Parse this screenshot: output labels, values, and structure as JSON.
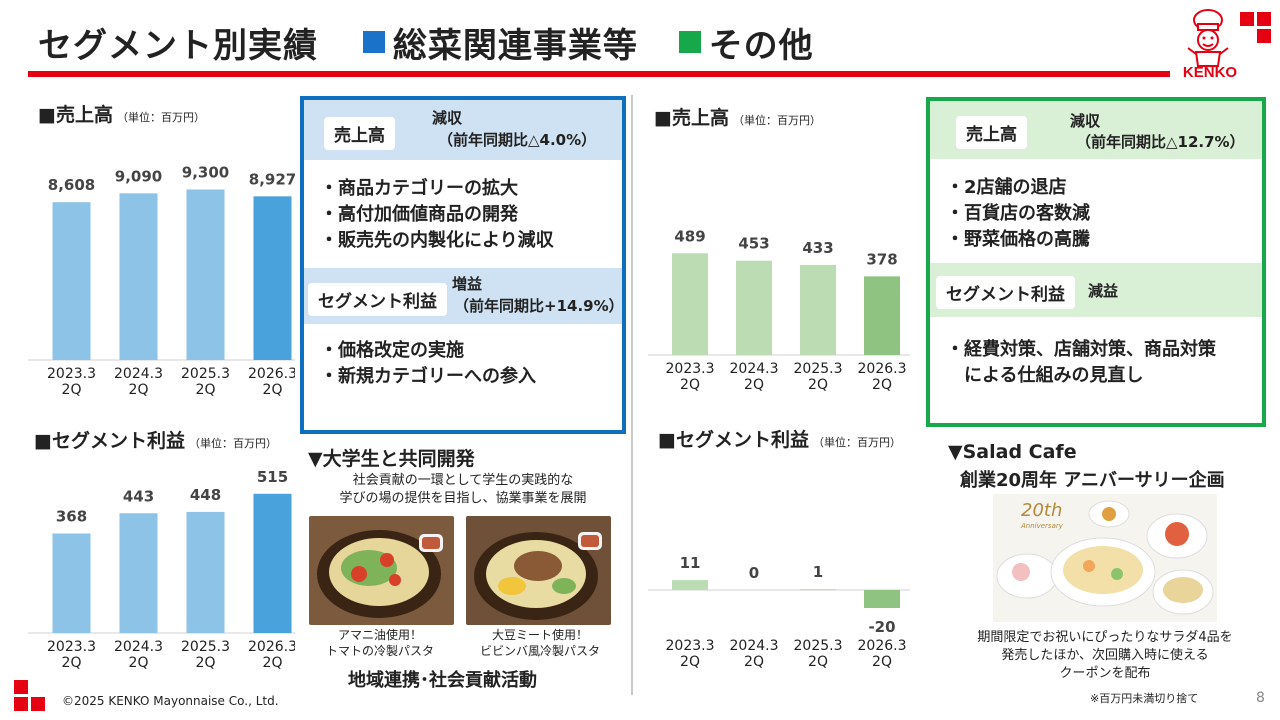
{
  "header": {
    "title": "セグメント別実績",
    "seg1": "総菜関連事業等",
    "seg2": "その他",
    "seg1_color": "#1a73c8",
    "seg2_color": "#16a84a",
    "brand": "KENKO"
  },
  "left": {
    "sales_label": "■売上高",
    "sales_unit": "（単位：百万円）",
    "profit_label": "■セグメント利益",
    "profit_unit": "（単位：百万円）",
    "box": {
      "sales_pill": "売上高",
      "sales_result": "減収",
      "sales_detail": "（前年同期比△4.0%）",
      "sales_bullets": [
        "・商品カテゴリーの拡大",
        "・高付加価値商品の開発",
        "・販売先の内製化により減収"
      ],
      "profit_pill": "セグメント利益",
      "profit_result": "増益",
      "profit_detail": "（前年同期比+14.9%）",
      "profit_bullets": [
        "・価格改定の実施",
        "・新規カテゴリーへの参入"
      ]
    },
    "collab": {
      "heading": "▼大学生と共同開発",
      "desc1": "社会貢献の一環として学生の実践的な",
      "desc2": "学びの場の提供を目指し、協業事業を展開",
      "cap1a": "アマニ油使用！",
      "cap1b": "トマトの冷製パスタ",
      "cap2a": "大豆ミート使用！",
      "cap2b": "ビビンバ風冷製パスタ",
      "footer": "地域連携･社会貢献活動"
    }
  },
  "right": {
    "sales_label": "■売上高",
    "sales_unit": "（単位：百万円）",
    "profit_label": "■セグメント利益",
    "profit_unit": "（単位：百万円）",
    "box": {
      "sales_pill": "売上高",
      "sales_result": "減収",
      "sales_detail": "（前年同期比△12.7%）",
      "sales_bullets": [
        "・2店舗の退店",
        "・百貨店の客数減",
        "・野菜価格の高騰"
      ],
      "profit_pill": "セグメント利益",
      "profit_result": "減益",
      "profit_bullets": [
        "・経費対策、店舗対策、商品対策",
        "　による仕組みの見直し"
      ]
    },
    "cafe": {
      "heading1": "▼Salad Cafe",
      "heading2": "創業20周年 アニバーサリー企画",
      "anniv": "20th",
      "anniv_sub": "Anniversary",
      "desc1": "期間限定でお祝いにぴったりなサラダ4品を",
      "desc2": "発売したほか、次回購入時に使える",
      "desc3": "クーポンを配布"
    }
  },
  "chart_data": [
    {
      "id": "seg1-sales",
      "type": "bar",
      "categories": [
        "2023.3 2Q",
        "2024.3 2Q",
        "2025.3 2Q",
        "2026.3 2Q"
      ],
      "values": [
        8608,
        9090,
        9300,
        8927
      ],
      "labels": [
        "8,608",
        "9,090",
        "9,300",
        "8,927"
      ],
      "colors": [
        "#8dc3e6",
        "#8dc3e6",
        "#8dc3e6",
        "#4aa2dc"
      ],
      "ylim": [
        0,
        12000
      ]
    },
    {
      "id": "seg1-profit",
      "type": "bar",
      "categories": [
        "2023.3 2Q",
        "2024.3 2Q",
        "2025.3 2Q",
        "2026.3 2Q"
      ],
      "values": [
        368,
        443,
        448,
        515
      ],
      "labels": [
        "368",
        "443",
        "448",
        "515"
      ],
      "colors": [
        "#8dc3e6",
        "#8dc3e6",
        "#8dc3e6",
        "#4aa2dc"
      ],
      "ylim": [
        0,
        640
      ]
    },
    {
      "id": "seg2-sales",
      "type": "bar",
      "categories": [
        "2023.3 2Q",
        "2024.3 2Q",
        "2025.3 2Q",
        "2026.3 2Q"
      ],
      "values": [
        489,
        453,
        433,
        378
      ],
      "labels": [
        "489",
        "453",
        "433",
        "378"
      ],
      "colors": [
        "#bcdcb4",
        "#bcdcb4",
        "#bcdcb4",
        "#8ec381"
      ],
      "ylim": [
        0,
        620
      ]
    },
    {
      "id": "seg2-profit",
      "type": "bar",
      "categories": [
        "2023.3 2Q",
        "2024.3 2Q",
        "2025.3 2Q",
        "2026.3 2Q"
      ],
      "values": [
        11,
        0,
        1,
        -20
      ],
      "labels": [
        "11",
        "0",
        "1",
        "-20"
      ],
      "colors": [
        "#bcdcb4",
        "#bcdcb4",
        "#bcdcb4",
        "#8ec381"
      ],
      "ylim": [
        -60,
        60
      ]
    }
  ],
  "footer": {
    "copyright": "©2025 KENKO Mayonnaise Co., Ltd.",
    "note": "※百万円未満切り捨て",
    "page": "8"
  }
}
